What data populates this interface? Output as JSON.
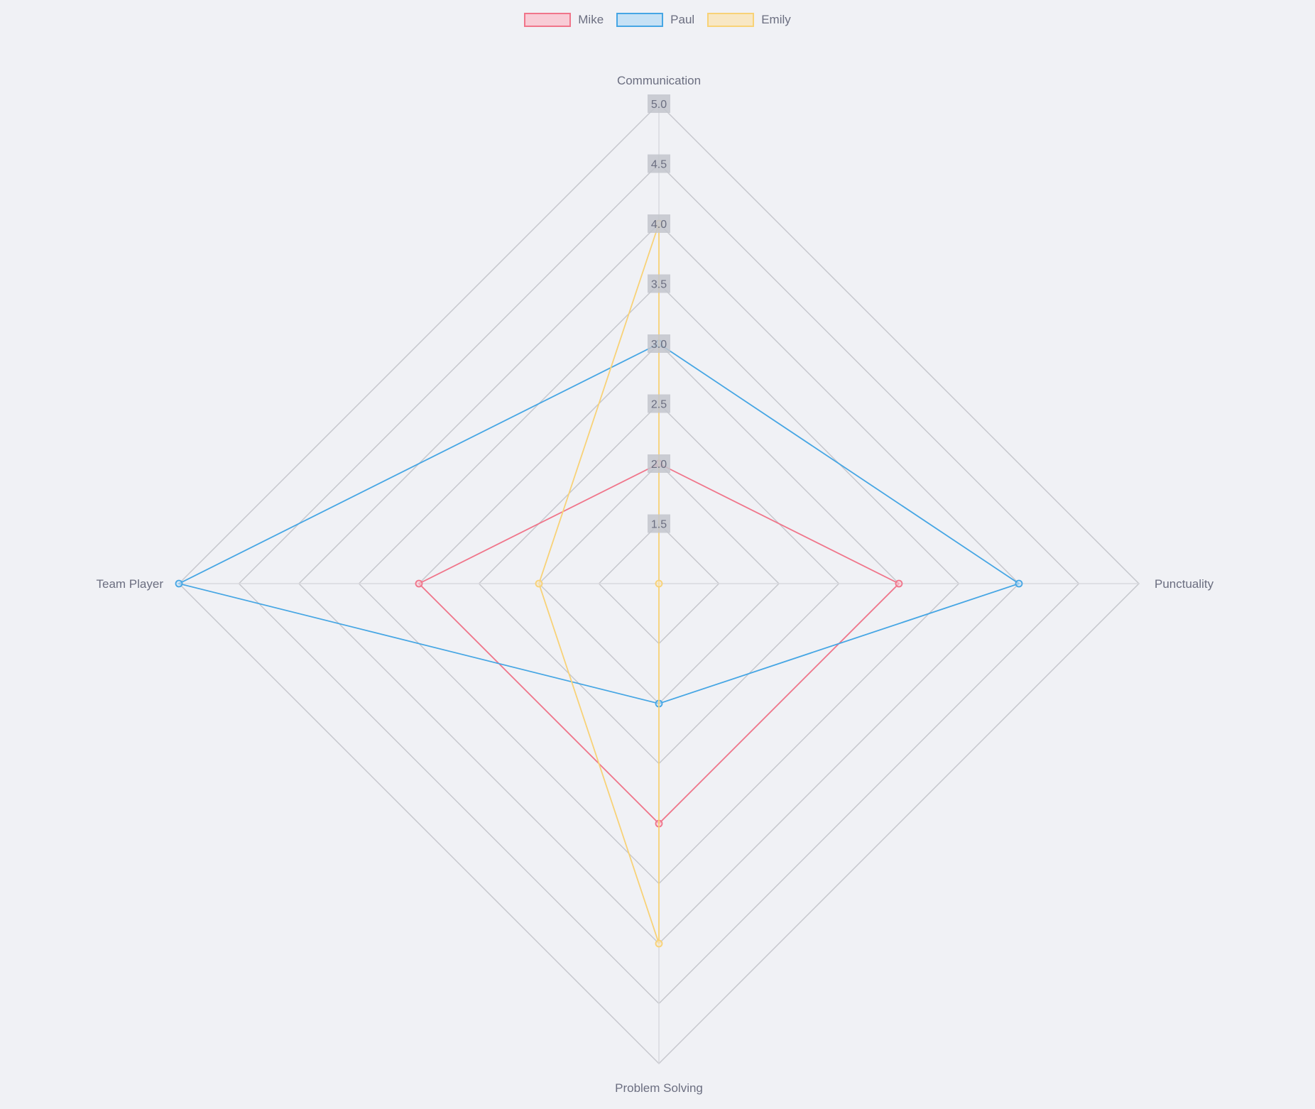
{
  "chart_data": {
    "type": "radar",
    "axes": [
      "Communication",
      "Punctuality",
      "Problem Solving",
      "Team Player"
    ],
    "r_range": [
      1,
      5
    ],
    "ticks": [
      "1.5",
      "2.0",
      "2.5",
      "3.0",
      "3.5",
      "4.0",
      "4.5",
      "5.0"
    ],
    "tick_values": [
      1.5,
      2.0,
      2.5,
      3.0,
      3.5,
      4.0,
      4.5,
      5.0
    ],
    "legend_position": "top-center",
    "series": [
      {
        "name": "Mike",
        "values": [
          2.0,
          3.0,
          3.0,
          3.0
        ],
        "color": "#f0758a",
        "fill": "#f8ccd6"
      },
      {
        "name": "Paul",
        "values": [
          3.0,
          4.0,
          2.0,
          5.0
        ],
        "color": "#46a6e4",
        "fill": "#c6e1f5"
      },
      {
        "name": "Emily",
        "values": [
          4.0,
          1.0,
          4.0,
          2.0
        ],
        "color": "#f8d277",
        "fill": "#f8e7c4"
      }
    ],
    "colors": {
      "grid": "#c6c7cd",
      "tick_backdrop": "#c3c5cd",
      "text": "#6b6e80",
      "background": "#f0f1f5"
    }
  }
}
